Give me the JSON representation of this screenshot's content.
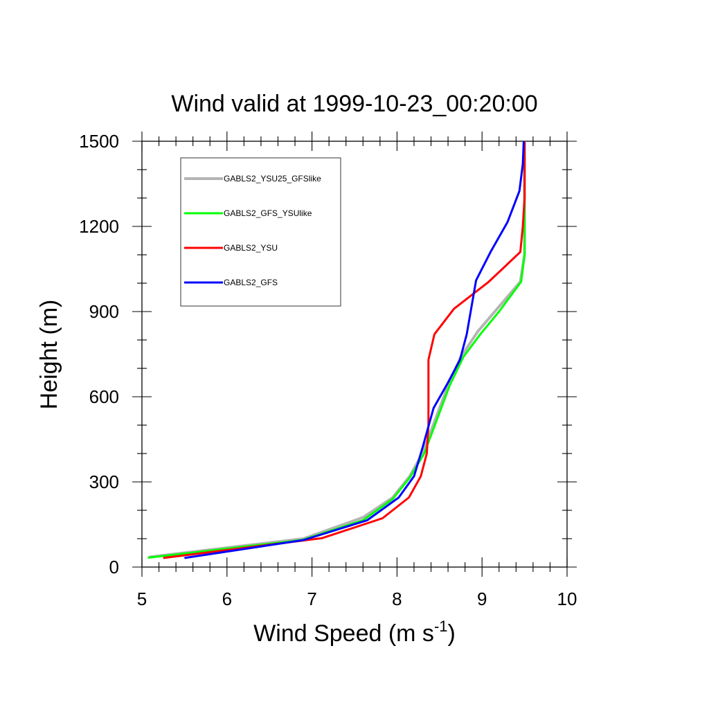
{
  "chart_data": {
    "type": "line",
    "title": "Wind valid at 1999-10-23_00:20:00",
    "xlabel": "Wind Speed (m s",
    "xlabel_superscript": "-1",
    "xlabel_suffix": ")",
    "ylabel": "Height (m)",
    "xlim": [
      5,
      10
    ],
    "ylim": [
      0,
      1500
    ],
    "xticks": [
      5,
      6,
      7,
      8,
      9,
      10
    ],
    "yticks": [
      0,
      300,
      600,
      900,
      1200,
      1500
    ],
    "xtick_labels": [
      "5",
      "6",
      "7",
      "8",
      "9",
      "10"
    ],
    "ytick_labels": [
      "0",
      "300",
      "600",
      "900",
      "1200",
      "1500"
    ],
    "grid": false,
    "legend_position": "top-left",
    "series": [
      {
        "name": "GABLS2_YSU25_GFSlike",
        "color": "#b4b4b4",
        "points": [
          [
            5.08,
            35
          ],
          [
            6.9,
            100
          ],
          [
            7.6,
            175
          ],
          [
            7.95,
            245
          ],
          [
            8.15,
            320
          ],
          [
            8.3,
            400
          ],
          [
            8.45,
            520
          ],
          [
            8.6,
            640
          ],
          [
            8.75,
            740
          ],
          [
            8.95,
            830
          ],
          [
            9.15,
            900
          ],
          [
            9.45,
            1005
          ],
          [
            9.5,
            1100
          ],
          [
            9.5,
            1200
          ],
          [
            9.5,
            1300
          ],
          [
            9.5,
            1400
          ],
          [
            9.5,
            1500
          ]
        ]
      },
      {
        "name": "GABLS2_GFS_YSUlike",
        "color": "#00ff00",
        "points": [
          [
            5.07,
            33
          ],
          [
            6.88,
            95
          ],
          [
            7.6,
            165
          ],
          [
            7.95,
            240
          ],
          [
            8.15,
            315
          ],
          [
            8.32,
            400
          ],
          [
            8.47,
            520
          ],
          [
            8.62,
            640
          ],
          [
            8.78,
            740
          ],
          [
            8.98,
            820
          ],
          [
            9.2,
            900
          ],
          [
            9.46,
            1005
          ],
          [
            9.5,
            1100
          ],
          [
            9.5,
            1200
          ],
          [
            9.5,
            1300
          ],
          [
            9.5,
            1400
          ],
          [
            9.5,
            1500
          ]
        ]
      },
      {
        "name": "GABLS2_YSU",
        "color": "#ff0000",
        "points": [
          [
            5.25,
            32
          ],
          [
            7.12,
            102
          ],
          [
            7.83,
            172
          ],
          [
            8.14,
            245
          ],
          [
            8.28,
            320
          ],
          [
            8.35,
            400
          ],
          [
            8.37,
            500
          ],
          [
            8.37,
            640
          ],
          [
            8.37,
            730
          ],
          [
            8.44,
            820
          ],
          [
            8.67,
            910
          ],
          [
            9.08,
            1005
          ],
          [
            9.45,
            1110
          ],
          [
            9.48,
            1200
          ],
          [
            9.5,
            1300
          ],
          [
            9.5,
            1400
          ],
          [
            9.5,
            1500
          ]
        ]
      },
      {
        "name": "GABLS2_GFS",
        "color": "#0000ff",
        "points": [
          [
            5.5,
            32
          ],
          [
            6.9,
            95
          ],
          [
            7.65,
            165
          ],
          [
            8.02,
            245
          ],
          [
            8.2,
            320
          ],
          [
            8.3,
            420
          ],
          [
            8.43,
            560
          ],
          [
            8.6,
            650
          ],
          [
            8.74,
            730
          ],
          [
            8.82,
            820
          ],
          [
            8.93,
            1010
          ],
          [
            9.1,
            1110
          ],
          [
            9.3,
            1215
          ],
          [
            9.44,
            1325
          ],
          [
            9.48,
            1420
          ],
          [
            9.49,
            1500
          ]
        ]
      }
    ]
  }
}
